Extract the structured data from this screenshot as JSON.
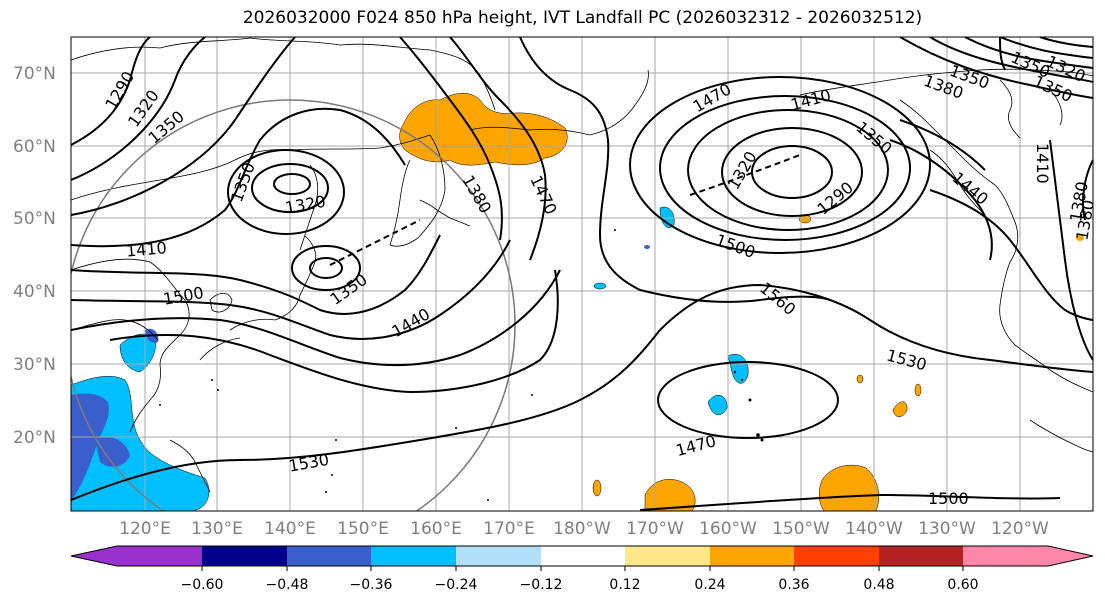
{
  "title": "2026032000 F024 850 hPa height, IVT Landfall PC (2026032312 - 2026032512)",
  "lat_labels": [
    "70°N",
    "60°N",
    "50°N",
    "40°N",
    "30°N",
    "20°N"
  ],
  "lon_labels": [
    "120°E",
    "130°E",
    "140°E",
    "150°E",
    "160°E",
    "170°E",
    "180°W",
    "170°W",
    "160°W",
    "150°W",
    "140°W",
    "130°W",
    "120°W"
  ],
  "contour_labels": [
    "1290",
    "1320",
    "1350",
    "1350",
    "1320",
    "1350",
    "1410",
    "1380",
    "1470",
    "1500",
    "1440",
    "1350",
    "1470",
    "1410",
    "1320",
    "1350",
    "1290",
    "1500",
    "1560",
    "1380",
    "1350",
    "1410",
    "1440",
    "1380",
    "1530",
    "1530",
    "1470",
    "1530",
    "1500",
    "1380",
    "1350",
    "1320"
  ],
  "colorbar": {
    "ticks": [
      "−0.60",
      "−0.48",
      "−0.36",
      "−0.24",
      "−0.12",
      "0.12",
      "0.24",
      "0.36",
      "0.48",
      "0.60"
    ],
    "colors": [
      "#9932cc",
      "#00008b",
      "#3a5fcd",
      "#00bfff",
      "#b0e0fa",
      "#ffffff",
      "#ffe88a",
      "#ffa500",
      "#ff4000",
      "#b22222",
      "#ff88aa"
    ]
  }
}
